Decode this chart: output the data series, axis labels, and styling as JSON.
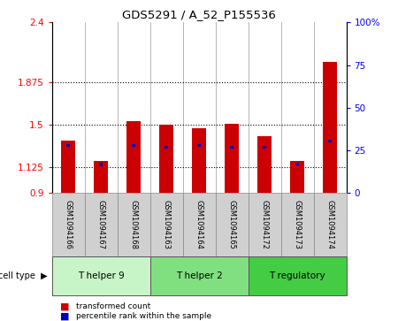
{
  "title": "GDS5291 / A_52_P155536",
  "samples": [
    "GSM1094166",
    "GSM1094167",
    "GSM1094168",
    "GSM1094163",
    "GSM1094164",
    "GSM1094165",
    "GSM1094172",
    "GSM1094173",
    "GSM1094174"
  ],
  "red_values": [
    1.36,
    1.18,
    1.53,
    1.5,
    1.47,
    1.51,
    1.4,
    1.18,
    2.05
  ],
  "blue_positions": [
    1.305,
    1.135,
    1.305,
    1.285,
    1.3,
    1.29,
    1.285,
    1.14,
    1.345
  ],
  "blue_bar_height": 0.025,
  "blue_bar_width": 0.12,
  "ylim": [
    0.9,
    2.4
  ],
  "ylim_right": [
    0,
    100
  ],
  "yticks_left": [
    0.9,
    1.125,
    1.5,
    1.875,
    2.4
  ],
  "yticks_left_labels": [
    "0.9",
    "1.125",
    "1.5",
    "1.875",
    "2.4"
  ],
  "yticks_right": [
    0,
    25,
    50,
    75,
    100
  ],
  "yticks_right_labels": [
    "0",
    "25",
    "50",
    "75",
    "100%"
  ],
  "hlines": [
    1.125,
    1.5,
    1.875
  ],
  "bar_bottom": 0.9,
  "bar_width": 0.45,
  "cell_types": [
    {
      "label": "T helper 9",
      "start": 0,
      "end": 3,
      "color": "#c8f5c8"
    },
    {
      "label": "T helper 2",
      "start": 3,
      "end": 6,
      "color": "#80e080"
    },
    {
      "label": "T regulatory",
      "start": 6,
      "end": 9,
      "color": "#44cc44"
    }
  ],
  "red_color": "#cc0000",
  "blue_color": "#0000bb",
  "sample_bg_color": "#d0d0d0",
  "legend_items": [
    {
      "color": "#cc0000",
      "label": "transformed count"
    },
    {
      "color": "#0000bb",
      "label": "percentile rank within the sample"
    }
  ]
}
